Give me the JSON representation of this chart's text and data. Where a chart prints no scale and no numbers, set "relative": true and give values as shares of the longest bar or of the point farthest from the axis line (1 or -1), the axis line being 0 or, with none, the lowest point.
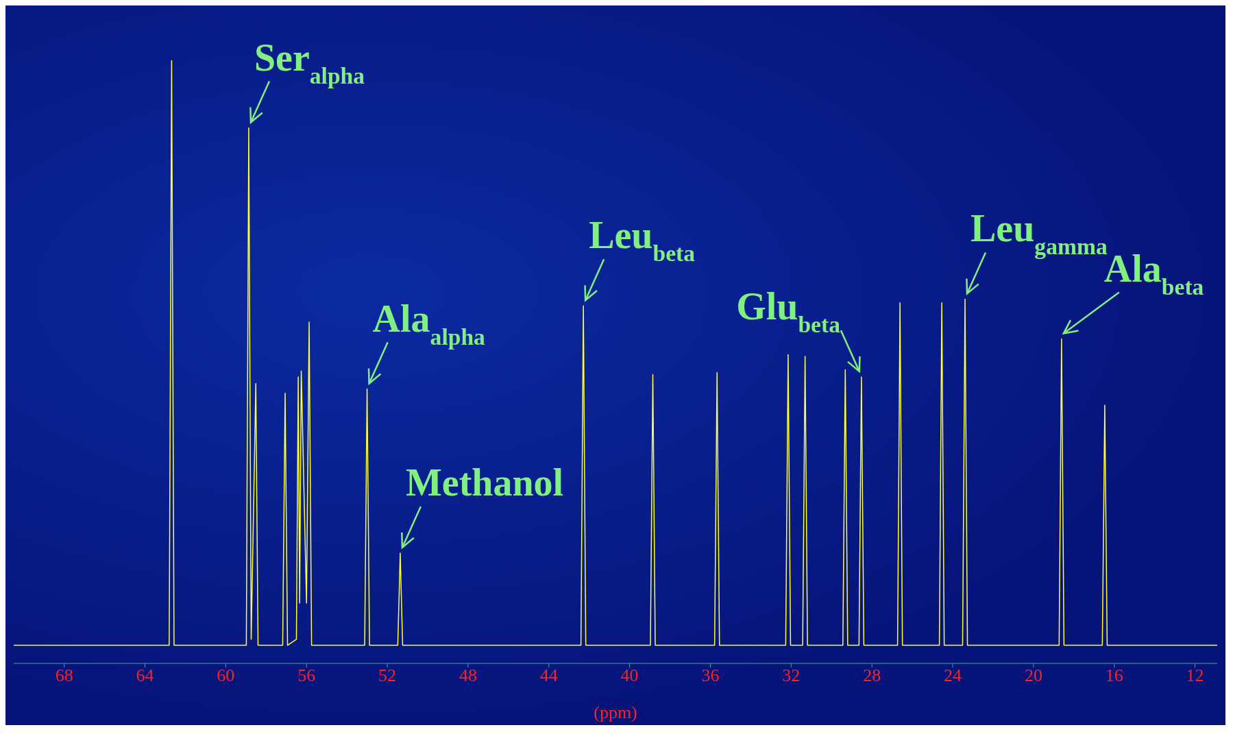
{
  "chart_data": {
    "type": "line",
    "relative": true,
    "xlabel": "(ppm)",
    "xlim": [
      70.5,
      10.9
    ],
    "xticks": [
      68,
      64,
      60,
      56,
      52,
      48,
      44,
      40,
      36,
      32,
      28,
      24,
      20,
      16,
      12
    ],
    "series": [
      {
        "color": "#ffff33",
        "x": [
          70.5,
          62.8,
          62.68,
          62.56,
          58.98,
          58.86,
          58.74,
          58.51,
          58.4,
          57.18,
          57.06,
          56.94,
          56.5,
          56.41,
          56.34,
          56.26,
          56.0,
          55.87,
          55.75,
          53.12,
          53.0,
          52.88,
          51.48,
          51.36,
          51.24,
          42.41,
          42.29,
          42.17,
          38.97,
          38.85,
          38.73,
          35.79,
          35.67,
          35.55,
          32.27,
          32.15,
          32.03,
          31.43,
          31.31,
          31.19,
          29.44,
          29.32,
          29.2,
          28.64,
          28.52,
          28.4,
          26.73,
          26.61,
          26.49,
          24.66,
          24.54,
          24.42,
          23.51,
          23.39,
          23.27,
          18.73,
          18.61,
          18.49,
          16.59,
          16.47,
          16.35,
          10.9
        ],
        "values": [
          0.03,
          0.03,
          1.0,
          0.03,
          0.03,
          0.888,
          0.04,
          0.464,
          0.03,
          0.03,
          0.448,
          0.03,
          0.04,
          0.475,
          0.1,
          0.485,
          0.1,
          0.566,
          0.03,
          0.03,
          0.455,
          0.03,
          0.03,
          0.183,
          0.03,
          0.03,
          0.593,
          0.03,
          0.03,
          0.479,
          0.03,
          0.03,
          0.482,
          0.03,
          0.03,
          0.512,
          0.03,
          0.03,
          0.509,
          0.03,
          0.03,
          0.487,
          0.03,
          0.03,
          0.475,
          0.03,
          0.03,
          0.598,
          0.03,
          0.03,
          0.598,
          0.03,
          0.03,
          0.604,
          0.03,
          0.03,
          0.538,
          0.03,
          0.03,
          0.428,
          0.03,
          0.03
        ]
      }
    ],
    "annotations": [
      {
        "text": "Ser$_{alpha}$",
        "x": 58.86,
        "y": 0.888
      },
      {
        "text": "Ala$_{alpha}$",
        "x": 53.0,
        "y": 0.455
      },
      {
        "text": "Methanol",
        "x": 51.36,
        "y": 0.183
      },
      {
        "text": "Leu$_{beta}$",
        "x": 42.29,
        "y": 0.593
      },
      {
        "text": "Glu$_{beta}$",
        "x": 28.52,
        "y": 0.475
      },
      {
        "text": "Leu$_{gamma}$",
        "x": 23.39,
        "y": 0.604
      },
      {
        "text": "Ala$_{beta}$",
        "x": 18.61,
        "y": 0.538
      }
    ]
  }
}
